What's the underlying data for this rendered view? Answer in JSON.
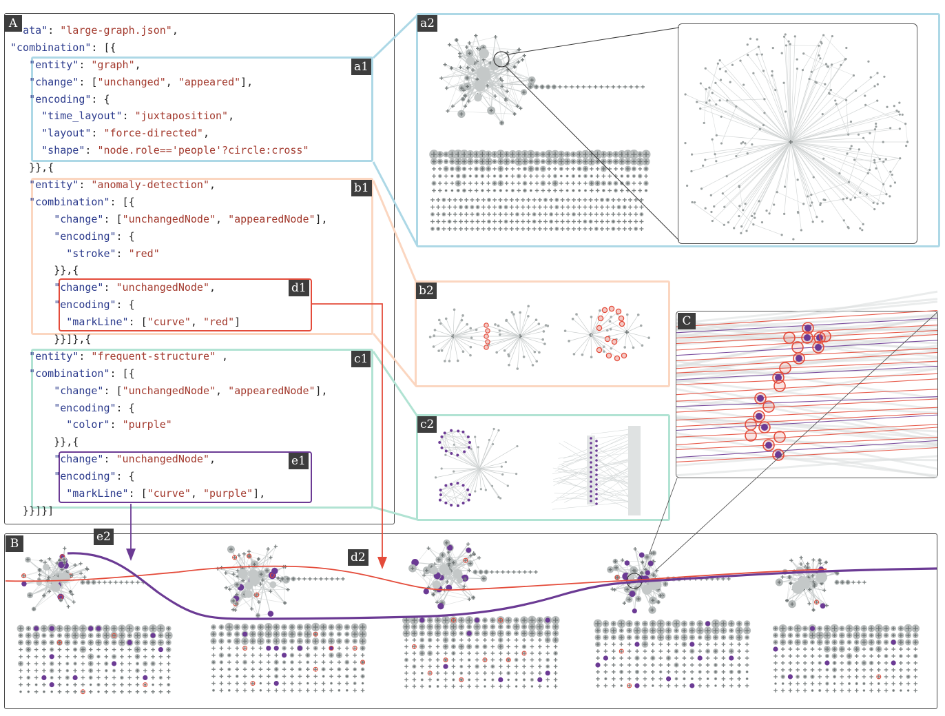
{
  "panel_labels": {
    "A": "A",
    "a1": "a1",
    "b1": "b1",
    "c1": "c1",
    "d1": "d1",
    "e1": "e1",
    "a2": "a2",
    "b2": "b2",
    "c2": "c2",
    "C": "C",
    "B": "B",
    "d2": "d2",
    "e2": "e2"
  },
  "code_lines": [
    [
      {
        "t": "p",
        "v": "  "
      },
      {
        "t": "k",
        "v": "ata\""
      },
      {
        "t": "p",
        "v": ": "
      },
      {
        "t": "s",
        "v": "\"large-graph.json\""
      },
      {
        "t": "p",
        "v": ","
      }
    ],
    [
      {
        "t": "k",
        "v": "\"combination\""
      },
      {
        "t": "p",
        "v": ": [{"
      }
    ],
    [
      {
        "t": "p",
        "v": "   "
      },
      {
        "t": "k",
        "v": "\"entity\""
      },
      {
        "t": "p",
        "v": ": "
      },
      {
        "t": "s",
        "v": "\"graph\""
      },
      {
        "t": "p",
        "v": ","
      }
    ],
    [
      {
        "t": "p",
        "v": "   "
      },
      {
        "t": "k",
        "v": "\"change\""
      },
      {
        "t": "p",
        "v": ": ["
      },
      {
        "t": "s",
        "v": "\"unchanged\""
      },
      {
        "t": "p",
        "v": ", "
      },
      {
        "t": "s",
        "v": "\"appeared\""
      },
      {
        "t": "p",
        "v": "],"
      }
    ],
    [
      {
        "t": "p",
        "v": "   "
      },
      {
        "t": "k",
        "v": "\"encoding\""
      },
      {
        "t": "p",
        "v": ": {"
      }
    ],
    [
      {
        "t": "p",
        "v": "     "
      },
      {
        "t": "k",
        "v": "\"time_layout\""
      },
      {
        "t": "p",
        "v": ": "
      },
      {
        "t": "s",
        "v": "\"juxtaposition\""
      },
      {
        "t": "p",
        "v": ","
      }
    ],
    [
      {
        "t": "p",
        "v": "     "
      },
      {
        "t": "k",
        "v": "\"layout\""
      },
      {
        "t": "p",
        "v": ": "
      },
      {
        "t": "s",
        "v": "\"force-directed\""
      },
      {
        "t": "p",
        "v": ","
      }
    ],
    [
      {
        "t": "p",
        "v": "     "
      },
      {
        "t": "k",
        "v": "\"shape\""
      },
      {
        "t": "p",
        "v": ": "
      },
      {
        "t": "s",
        "v": "\"node.role=='people'?circle:cross\""
      }
    ],
    [
      {
        "t": "p",
        "v": "   }},{"
      }
    ],
    [
      {
        "t": "p",
        "v": "   "
      },
      {
        "t": "k",
        "v": "\"entity\""
      },
      {
        "t": "p",
        "v": ": "
      },
      {
        "t": "s",
        "v": "\"anomaly-detection\""
      },
      {
        "t": "p",
        "v": ","
      }
    ],
    [
      {
        "t": "p",
        "v": "   "
      },
      {
        "t": "k",
        "v": "\"combination\""
      },
      {
        "t": "p",
        "v": ": [{"
      }
    ],
    [
      {
        "t": "p",
        "v": "       "
      },
      {
        "t": "k",
        "v": "\"change\""
      },
      {
        "t": "p",
        "v": ": ["
      },
      {
        "t": "s",
        "v": "\"unchangedNode\""
      },
      {
        "t": "p",
        "v": ", "
      },
      {
        "t": "s",
        "v": "\"appearedNode\""
      },
      {
        "t": "p",
        "v": "],"
      }
    ],
    [
      {
        "t": "p",
        "v": "       "
      },
      {
        "t": "k",
        "v": "\"encoding\""
      },
      {
        "t": "p",
        "v": ": {"
      }
    ],
    [
      {
        "t": "p",
        "v": "         "
      },
      {
        "t": "k",
        "v": "\"stroke\""
      },
      {
        "t": "p",
        "v": ": "
      },
      {
        "t": "s",
        "v": "\"red\""
      }
    ],
    [
      {
        "t": "p",
        "v": "       }},{"
      }
    ],
    [
      {
        "t": "p",
        "v": "       "
      },
      {
        "t": "k",
        "v": "\"change\""
      },
      {
        "t": "p",
        "v": ": "
      },
      {
        "t": "s",
        "v": "\"unchangedNode\""
      },
      {
        "t": "p",
        "v": ","
      }
    ],
    [
      {
        "t": "p",
        "v": "       "
      },
      {
        "t": "k",
        "v": "\"encoding\""
      },
      {
        "t": "p",
        "v": ": {"
      }
    ],
    [
      {
        "t": "p",
        "v": "         "
      },
      {
        "t": "k",
        "v": "\"markLine\""
      },
      {
        "t": "p",
        "v": ": ["
      },
      {
        "t": "s",
        "v": "\"curve\""
      },
      {
        "t": "p",
        "v": ", "
      },
      {
        "t": "s",
        "v": "\"red\""
      },
      {
        "t": "p",
        "v": "]"
      }
    ],
    [
      {
        "t": "p",
        "v": "       }}]},{"
      }
    ],
    [
      {
        "t": "p",
        "v": "   "
      },
      {
        "t": "k",
        "v": "\"entity\""
      },
      {
        "t": "p",
        "v": ": "
      },
      {
        "t": "s",
        "v": "\"frequent-structure\""
      },
      {
        "t": "p",
        "v": " ,"
      }
    ],
    [
      {
        "t": "p",
        "v": "   "
      },
      {
        "t": "k",
        "v": "\"combination\""
      },
      {
        "t": "p",
        "v": ": [{"
      }
    ],
    [
      {
        "t": "p",
        "v": "       "
      },
      {
        "t": "k",
        "v": "\"change\""
      },
      {
        "t": "p",
        "v": ": ["
      },
      {
        "t": "s",
        "v": "\"unchangedNode\""
      },
      {
        "t": "p",
        "v": ", "
      },
      {
        "t": "s",
        "v": "\"appearedNode\""
      },
      {
        "t": "p",
        "v": "],"
      }
    ],
    [
      {
        "t": "p",
        "v": "       "
      },
      {
        "t": "k",
        "v": "\"encoding\""
      },
      {
        "t": "p",
        "v": ": {"
      }
    ],
    [
      {
        "t": "p",
        "v": "         "
      },
      {
        "t": "k",
        "v": "\"color\""
      },
      {
        "t": "p",
        "v": ": "
      },
      {
        "t": "s",
        "v": "\"purple\""
      }
    ],
    [
      {
        "t": "p",
        "v": "       }},{"
      }
    ],
    [
      {
        "t": "p",
        "v": "       "
      },
      {
        "t": "k",
        "v": "\"change\""
      },
      {
        "t": "p",
        "v": ": "
      },
      {
        "t": "s",
        "v": "\"unchangedNode\""
      },
      {
        "t": "p",
        "v": ","
      }
    ],
    [
      {
        "t": "p",
        "v": "       "
      },
      {
        "t": "k",
        "v": "\"encoding\""
      },
      {
        "t": "p",
        "v": ": {"
      }
    ],
    [
      {
        "t": "p",
        "v": "         "
      },
      {
        "t": "k",
        "v": "\"markLine\""
      },
      {
        "t": "p",
        "v": ": ["
      },
      {
        "t": "s",
        "v": "\"curve\""
      },
      {
        "t": "p",
        "v": ", "
      },
      {
        "t": "s",
        "v": "\"purple\""
      },
      {
        "t": "p",
        "v": "],"
      }
    ],
    [
      {
        "t": "p",
        "v": "  }}]}]"
      }
    ]
  ],
  "colors": {
    "blue_box": "#add8e6",
    "orange_box": "#fbd6c0",
    "green_box": "#b1e3d3",
    "anomaly_red": "#e44b3a",
    "frequent_purple": "#6b3a94",
    "node_gray": "#9aa0a0",
    "edge_gray": "#c8cccc",
    "key_blue": "#2b3a8c",
    "string_red": "#a33a2e"
  },
  "icons": [
    "circle-node-icon",
    "cross-node-icon"
  ]
}
